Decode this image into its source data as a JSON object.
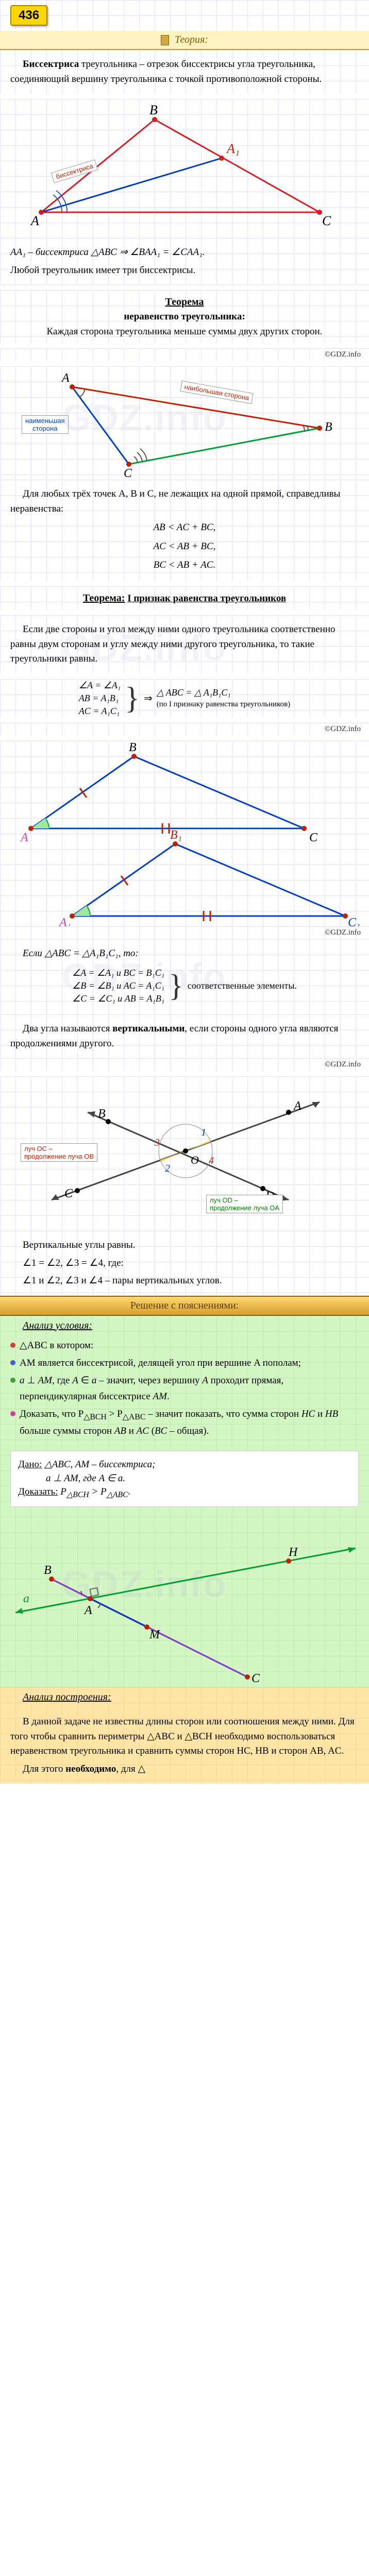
{
  "page_number": "436",
  "theory_header": "Теория:",
  "copyright": "©GDZ.info",
  "watermark_text": "GDZ.info",
  "intro": {
    "term": "Биссектриса",
    "text": " треугольника – отрезок биссектрисы угла треугольника, соединяющий вершину треугольника с точкой противоположной стороны."
  },
  "fig1": {
    "label_bisector": "биссектриса",
    "A": "A",
    "B": "B",
    "C": "C",
    "A1": "A₁",
    "colors": {
      "triangle": "#d02020",
      "bisector": "#0040c0",
      "angle": "#2060c0"
    }
  },
  "after_fig1_line1": "AA₁ – биссектриса △ABC ⇒ ∠BAA₁ = ∠CAA₁.",
  "after_fig1_line2": "Любой треугольник имеет три биссектрисы.",
  "theorem1": {
    "title": "Теорема",
    "subtitle": "неравенство треугольника:",
    "text": "Каждая сторона треугольника меньше суммы двух других сторон."
  },
  "fig2": {
    "label_max": "наибольшая сторона",
    "label_min": "наименьшая\nсторона",
    "A": "A",
    "B": "B",
    "C": "C",
    "colors": {
      "AB": "#0040c0",
      "BC": "#c02000",
      "CA": "#00a030"
    }
  },
  "inequality": {
    "intro": "Для любых трёх точек A, B и C, не лежащих на одной прямой, справедливы неравенства:",
    "lines": [
      "AB < AC + BC,",
      "AC < AB + BC,",
      "BC < AB + AC."
    ]
  },
  "theorem2": {
    "title": "Теорема:",
    "subtitle": "I признак равенства треугольников",
    "text": "Если две стороны и угол между ними одного треугольника соответственно равны двум сторонам и углу между ними другого треугольника, то такие треугольники равны."
  },
  "congruence1": {
    "leftLines": [
      "∠A = ∠A₁",
      "AB = A₁B₁",
      "AC = A₁C₁"
    ],
    "right": "△ ABC = △ A₁B₁C₁",
    "rightSub": "(по I признаку равенства треугольников)"
  },
  "fig3": {
    "A": "A",
    "B": "B",
    "C": "C",
    "A1": "A₁",
    "B1": "B₁",
    "C1": "C₁",
    "colors": {
      "tri": "#0040c0",
      "angle": "#00a030",
      "tick": "#c02000"
    }
  },
  "congruence2": {
    "intro": "Если △ABC = △A₁B₁C₁, то:",
    "leftLines": [
      "∠A = ∠A₁ и BC = B₁C₁",
      "∠B = ∠B₁ и AC = A₁C₁",
      "∠C = ∠C₁ и AB = A₁B₁"
    ],
    "right": "соответственные элементы."
  },
  "vertical": {
    "def": "Два угла называются вертикальными, если стороны одного угла являются продолжениями другого.",
    "label_OC": "луч OC – \nпродолжение луча OB",
    "label_OD": "луч OD – \nпродолжение луча OA",
    "A": "A",
    "B": "B",
    "C": "C",
    "D": "D",
    "O": "O",
    "nums": [
      "1",
      "2",
      "3",
      "4"
    ],
    "conclusion1": "Вертикальные углы равны.",
    "conclusion2": "∠1 = ∠2, ∠3 = ∠4, где:",
    "conclusion3": "∠1 и ∠2, ∠3 и ∠4 – пары вертикальных углов."
  },
  "solution_header": "Решение с пояснениями:",
  "analysis_cond": {
    "title": "Анализ условия:",
    "items": [
      {
        "mark": "bm-red",
        "text": "△ABC в котором:"
      },
      {
        "mark": "bm-blue",
        "text": "AM является биссектрисой, делящей угол при вершине A пополам;"
      },
      {
        "mark": "bm-green",
        "html": "<i>a</i> ⊥ <i>AM</i>, где <i>A</i> ∈ <i>a</i> – значит, через вершину <i>A</i> проходит прямая, перпендикулярная биссектрисе <i>AM</i>."
      },
      {
        "mark": "bm-pink",
        "html": "Доказать, что P<sub>△BCH</sub> &gt; P<sub>△ABC</sub> – значит показать, что сумма сторон <i>HC</i> и <i>HB</i> больше суммы сторон <i>AB</i> и <i>AC</i> (<i>BC</i> – общая)."
      }
    ]
  },
  "given": {
    "dano_label": "Дано:",
    "dano_text1": "△ABC, AM – биссектриса;",
    "dano_text2": "a ⊥ AM, где A ∈ a.",
    "dokazat_label": "Доказать:",
    "dokazat_text": "P△BCH > P△ABC."
  },
  "fig5": {
    "A": "A",
    "B": "B",
    "C": "C",
    "H": "H",
    "M": "M",
    "a": "a",
    "colors": {
      "BC": "#c02000",
      "a_line": "#00a030",
      "AM": "#0040c0",
      "AB": "#8040d0",
      "AC": "#8040d0",
      "point": "#c02000"
    }
  },
  "analysis_build": {
    "title": "Анализ построения:",
    "p1": "В данной задаче не известны длины сторон или соотношения между ними. Для того чтобы сравнить периметры △ABC и △BCH необходимо воспользоваться неравенством треугольника и сравнить суммы сторон HC, HB и сторон AB, AC.",
    "p2_prefix": "Для этого ",
    "p2_bold": "необходимо",
    "p2_suffix": ", для △"
  }
}
